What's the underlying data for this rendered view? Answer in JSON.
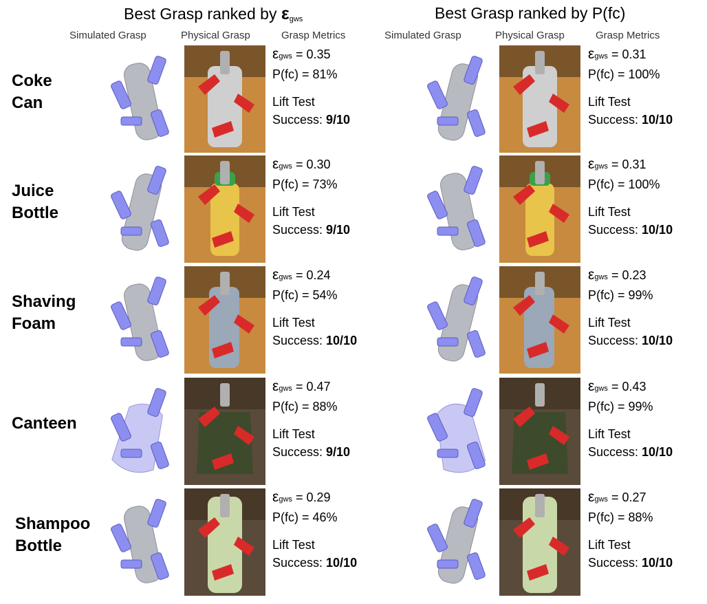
{
  "figure": {
    "left": {
      "title_prefix": "Best Grasp ranked by ",
      "title_symbol": "ε",
      "title_sub": "gws"
    },
    "right": {
      "title": "Best Grasp ranked by P(fc)"
    },
    "columns": {
      "simulated": "Simulated Grasp",
      "physical": "Physical Grasp",
      "metrics": "Grasp Metrics"
    },
    "eps_symbol": "ε",
    "eps_sub": "gws",
    "eps_eq": " = ",
    "pfc_prefix": "P(fc) = ",
    "lift_label": "Lift Test",
    "success_label": "Success: ",
    "objects": [
      {
        "name_line1": "Coke",
        "name_line2": "Can",
        "left": {
          "eps": "0.35",
          "pfc": "81%",
          "success": "9/10"
        },
        "right": {
          "eps": "0.31",
          "pfc": "100%",
          "success": "10/10"
        }
      },
      {
        "name_line1": "Juice",
        "name_line2": "Bottle",
        "left": {
          "eps": "0.30",
          "pfc": "73%",
          "success": "9/10"
        },
        "right": {
          "eps": "0.31",
          "pfc": "100%",
          "success": "10/10"
        }
      },
      {
        "name_line1": "Shaving",
        "name_line2": "Foam",
        "left": {
          "eps": "0.24",
          "pfc": "54%",
          "success": "10/10"
        },
        "right": {
          "eps": "0.23",
          "pfc": "99%",
          "success": "10/10"
        }
      },
      {
        "name_line1": "Canteen",
        "name_line2": "",
        "left": {
          "eps": "0.47",
          "pfc": "88%",
          "success": "9/10"
        },
        "right": {
          "eps": "0.43",
          "pfc": "99%",
          "success": "10/10"
        }
      },
      {
        "name_line1": "Shampoo",
        "name_line2": "Bottle",
        "left": {
          "eps": "0.29",
          "pfc": "46%",
          "success": "10/10"
        },
        "right": {
          "eps": "0.27",
          "pfc": "88%",
          "success": "10/10"
        }
      }
    ],
    "colors": {
      "gripper": "#8c8ef0",
      "object_sim": "#b8bac2",
      "photo_bg": "#c78a3f",
      "photo_dark": "#3a2a1a",
      "gripper_real": "#d92a2a",
      "metal": "#cfcfcf"
    }
  }
}
